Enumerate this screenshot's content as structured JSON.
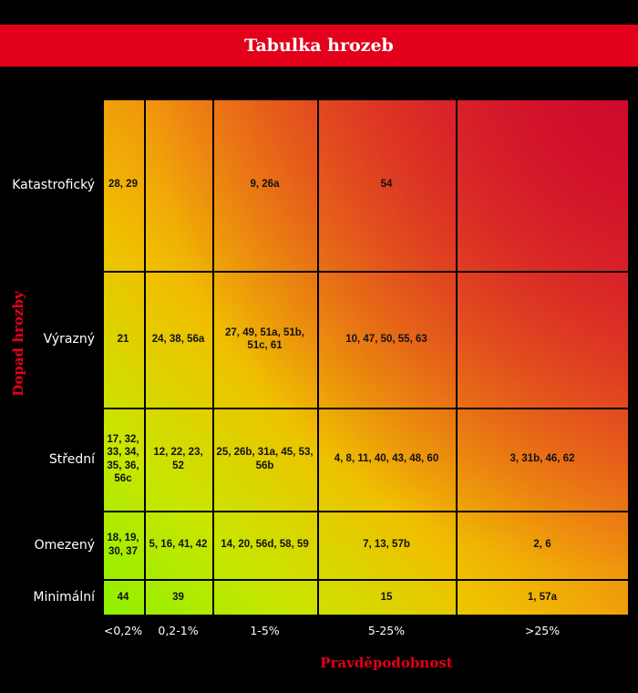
{
  "chart_data": {
    "type": "heatmap",
    "title": "Tabulka hrozeb",
    "xlabel": "Pravděpodobnost",
    "ylabel": "Dopad hrozby",
    "x_categories": [
      "<0,2%",
      "0,2-1%",
      "1-5%",
      "5-25%",
      ">25%"
    ],
    "y_categories": [
      "Katastrofický",
      "Výrazný",
      "Střední",
      "Omezený",
      "Minimální"
    ],
    "cells": [
      [
        "28, 29",
        "",
        "9, 26a",
        "54",
        ""
      ],
      [
        "21",
        "24, 38, 56a",
        "27, 49, 51a, 51b, 51c, 61",
        "10, 47, 50, 55, 63",
        ""
      ],
      [
        "17, 32, 33, 34, 35, 36, 56c",
        "12, 22, 23, 52",
        "25, 26b, 31a, 45, 53, 56b",
        "4, 8, 11, 40, 43, 48, 60",
        "3, 31b, 46, 62"
      ],
      [
        "18, 19, 30, 37",
        "5, 16, 41, 42",
        "14, 20, 56d, 58, 59",
        "7, 13, 57b",
        "2, 6"
      ],
      [
        "44",
        "39",
        "",
        "15",
        "1, 57a"
      ]
    ],
    "colors": {
      "low": "#8ef000",
      "mid": "#f0c000",
      "high": "#cf0a2c",
      "title_bg": "#e2001a"
    }
  }
}
